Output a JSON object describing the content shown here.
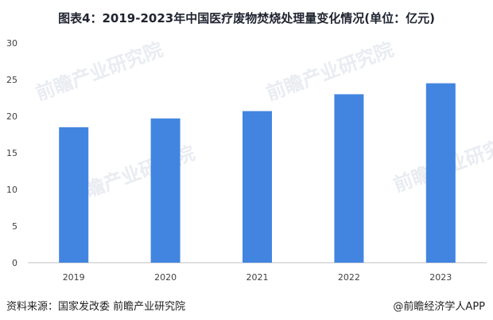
{
  "title": "图表4：2019-2023年中国医疗废物焚烧处理量变化情况(单位：亿元)",
  "watermark": "前瞻产业研究院",
  "footer": {
    "source": "资料来源：国家发改委 前瞻产业研究院",
    "brand": "@前瞻经济学人APP"
  },
  "colors": {
    "bar": "#4285e0",
    "axis": "#bfbfbf",
    "text": "#404040"
  },
  "chart_data": {
    "type": "bar",
    "title": "图表4：2019-2023年中国医疗废物焚烧处理量变化情况(单位：亿元)",
    "categories": [
      "2019",
      "2020",
      "2021",
      "2022",
      "2023"
    ],
    "values": [
      18.5,
      19.7,
      20.7,
      23.0,
      24.5
    ],
    "ylim": [
      0,
      30
    ],
    "yticks": [
      0,
      5,
      10,
      15,
      20,
      25,
      30
    ],
    "grid": false,
    "legend": "none"
  }
}
